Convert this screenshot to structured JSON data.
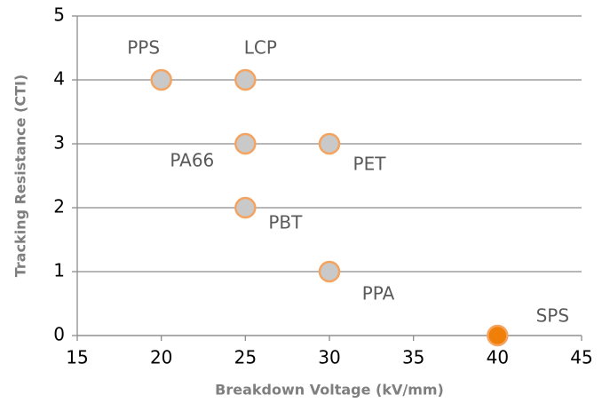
{
  "chart_data": {
    "type": "scatter",
    "x_label": "Breakdown Voltage (kV/mm)",
    "y_label": "Tracking Resistance (CTI)",
    "labels": [
      "PPS",
      "LCP",
      "PA66",
      "PET",
      "PBT",
      "PPA",
      "SPS"
    ],
    "x": [
      20,
      25,
      25,
      30,
      25,
      30,
      40
    ],
    "values": [
      4,
      4,
      3,
      3,
      2,
      1,
      0
    ],
    "colors": [
      "#c9c9c9",
      "#c9c9c9",
      "#c9c9c9",
      "#c9c9c9",
      "#c9c9c9",
      "#c9c9c9",
      "#f07f09"
    ],
    "edge_color": "#f4a460",
    "xlim": [
      15,
      45
    ],
    "xticks": [
      15,
      20,
      25,
      30,
      35,
      40,
      45
    ],
    "ylim": [
      0,
      5
    ],
    "yticks": [
      0,
      1,
      2,
      3,
      4,
      5
    ],
    "grid": true
  }
}
